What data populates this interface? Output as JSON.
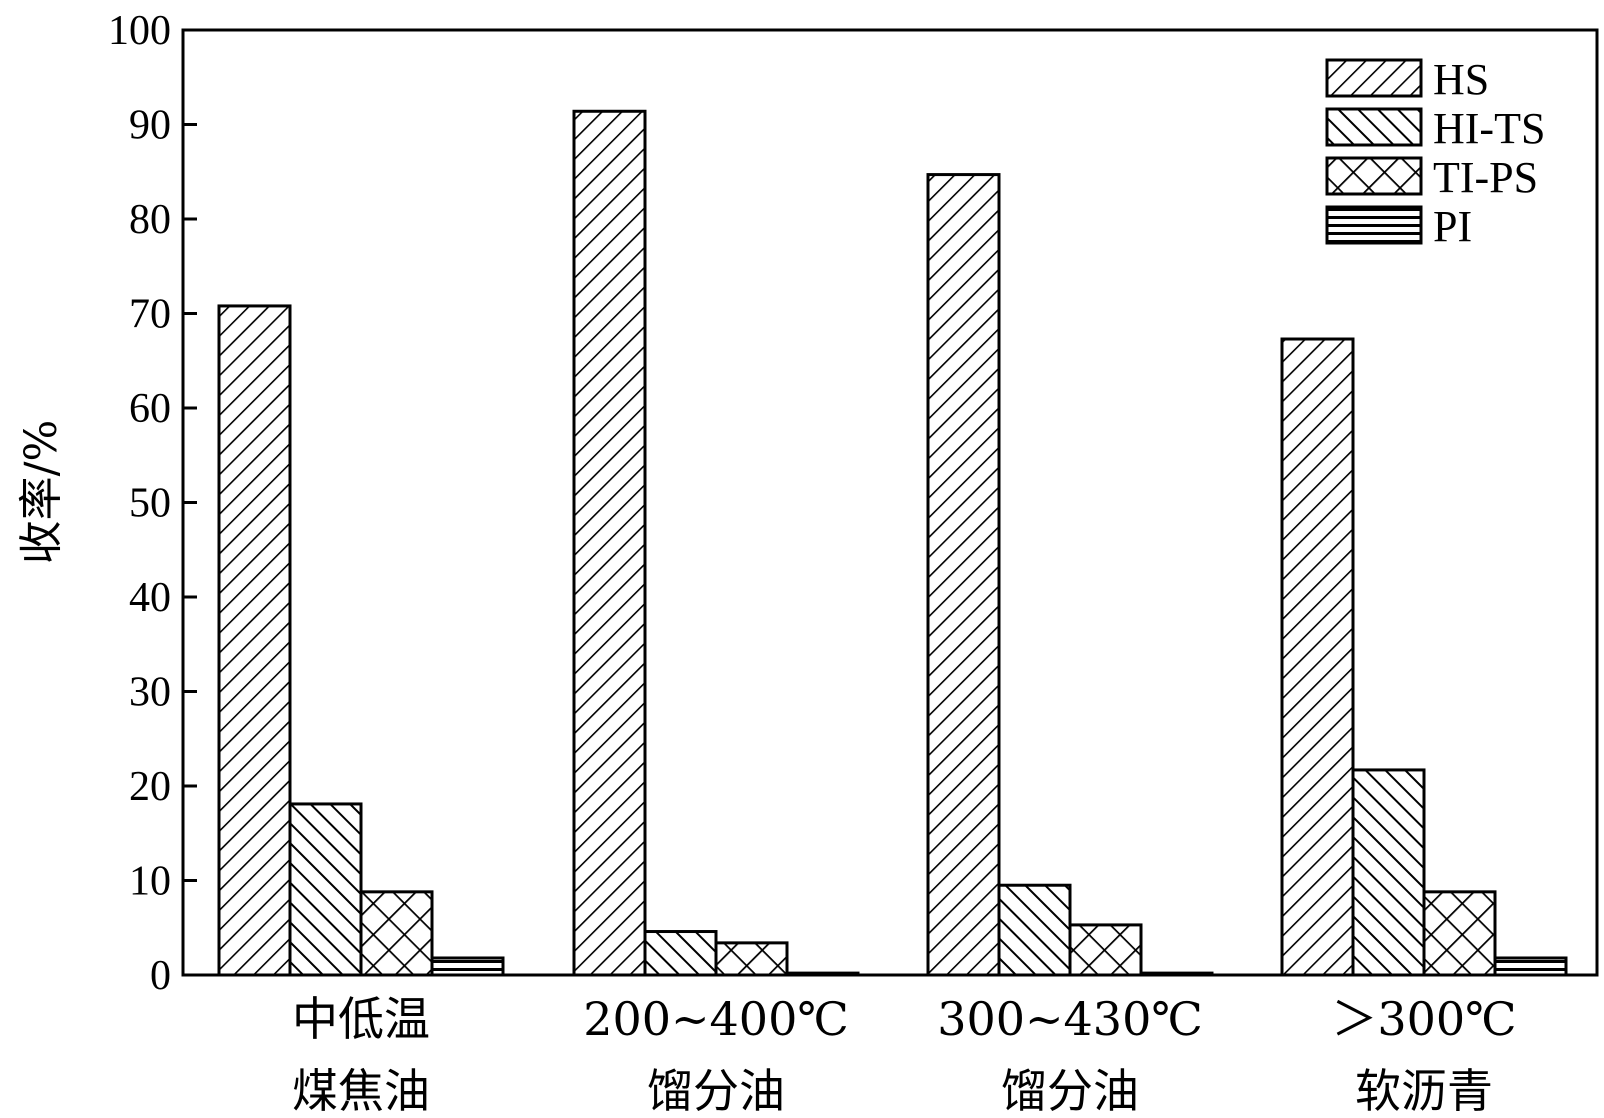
{
  "chart_data": {
    "type": "bar",
    "title": "",
    "xlabel": "",
    "ylabel": "收率/%",
    "ylim": [
      0,
      100
    ],
    "yticks": [
      "0",
      "10",
      "20",
      "30",
      "40",
      "50",
      "60",
      "70",
      "80",
      "90",
      "100"
    ],
    "categories": [
      [
        "中低温",
        "煤焦油"
      ],
      [
        "200~400℃",
        "馏分油"
      ],
      [
        "300~430℃",
        "馏分油"
      ],
      [
        "＞300℃",
        "软沥青"
      ]
    ],
    "series": [
      {
        "name": "HS",
        "pattern": "hatch-fwd",
        "values": [
          70.8,
          91.4,
          84.7,
          67.3
        ]
      },
      {
        "name": "HI-TS",
        "pattern": "hatch-back",
        "values": [
          18.1,
          4.6,
          9.5,
          21.7
        ]
      },
      {
        "name": "TI-PS",
        "pattern": "crosshatch",
        "values": [
          8.8,
          3.4,
          5.3,
          8.8
        ]
      },
      {
        "name": "PI",
        "pattern": "horizontal",
        "values": [
          1.8,
          0.2,
          0.2,
          1.8
        ]
      }
    ],
    "legend_position": "top-right",
    "grid": false,
    "colors": {
      "stroke": "#000000",
      "fill": "#ffffff"
    }
  }
}
